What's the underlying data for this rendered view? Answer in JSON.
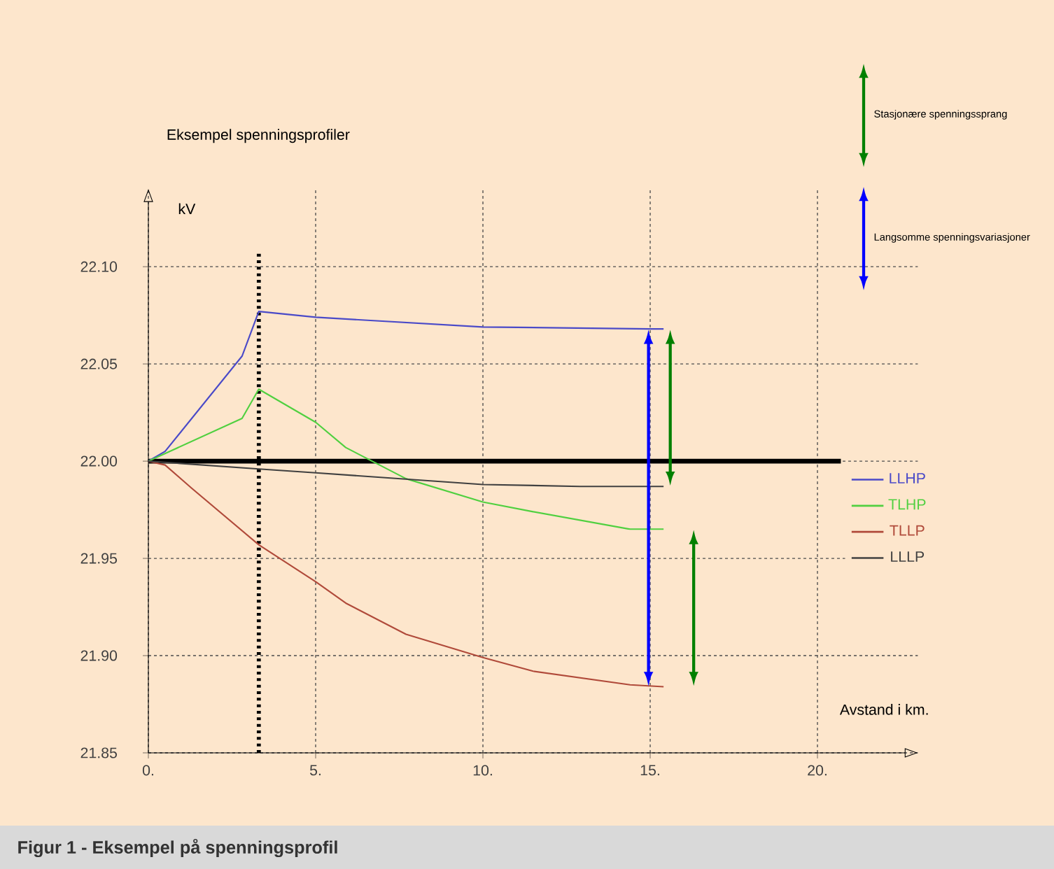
{
  "chart_data": {
    "type": "line",
    "title": "Eksempel spenningsprofiler",
    "xlabel": "Avstand i km.",
    "ylabel": "kV",
    "xlim": [
      0,
      23
    ],
    "ylim": [
      21.85,
      22.14
    ],
    "xticks": [
      {
        "value": 0,
        "label": "0."
      },
      {
        "value": 5,
        "label": "5."
      },
      {
        "value": 10,
        "label": "10."
      },
      {
        "value": 15,
        "label": "15."
      },
      {
        "value": 20,
        "label": "20."
      }
    ],
    "yticks": [
      {
        "value": 21.85,
        "label": "21.85"
      },
      {
        "value": 21.9,
        "label": "21.90"
      },
      {
        "value": 21.95,
        "label": "21.95"
      },
      {
        "value": 22.0,
        "label": "22.00"
      },
      {
        "value": 22.05,
        "label": "22.05"
      },
      {
        "value": 22.1,
        "label": "22.10"
      }
    ],
    "grid": true,
    "legend": "right",
    "series": [
      {
        "name": "LLHP",
        "color": "#4a4ac8",
        "x": [
          0,
          0.5,
          2.8,
          3.3,
          5,
          10,
          15,
          15.4
        ],
        "values": [
          22.0,
          22.005,
          22.054,
          22.077,
          22.074,
          22.069,
          22.068,
          22.068
        ]
      },
      {
        "name": "TLHP",
        "color": "#50d040",
        "x": [
          0,
          2.8,
          3.3,
          5,
          5.9,
          7.7,
          10,
          11.5,
          14.4,
          15.4
        ],
        "values": [
          22.0,
          22.022,
          22.037,
          22.02,
          22.007,
          21.991,
          21.979,
          21.974,
          21.965,
          21.965
        ]
      },
      {
        "name": "TLLP",
        "color": "#b04a3a",
        "x": [
          0,
          0.5,
          1.3,
          3.3,
          5,
          5.9,
          7.7,
          10,
          11.5,
          14.4,
          15.4
        ],
        "values": [
          22.0,
          21.998,
          21.986,
          21.957,
          21.938,
          21.927,
          21.911,
          21.899,
          21.892,
          21.885,
          21.884
        ]
      },
      {
        "name": "LLLP",
        "color": "#404040",
        "x": [
          0,
          3.3,
          5,
          10,
          12.9,
          15.4
        ],
        "values": [
          22.0,
          21.996,
          21.994,
          21.988,
          21.987,
          21.987
        ]
      }
    ],
    "ref_lines": [
      {
        "axis": "y",
        "value": 22.0,
        "color": "#000000",
        "line_style": "solid"
      },
      {
        "axis": "x",
        "value": 3.3,
        "color": "#000000",
        "line_style": "dotted"
      }
    ],
    "annotations": [
      "Stasjonære spenningssprang",
      "Langsomme spenningsvariasjoner",
      "Figur 1 - Eksempel på spenningsprofil"
    ]
  }
}
